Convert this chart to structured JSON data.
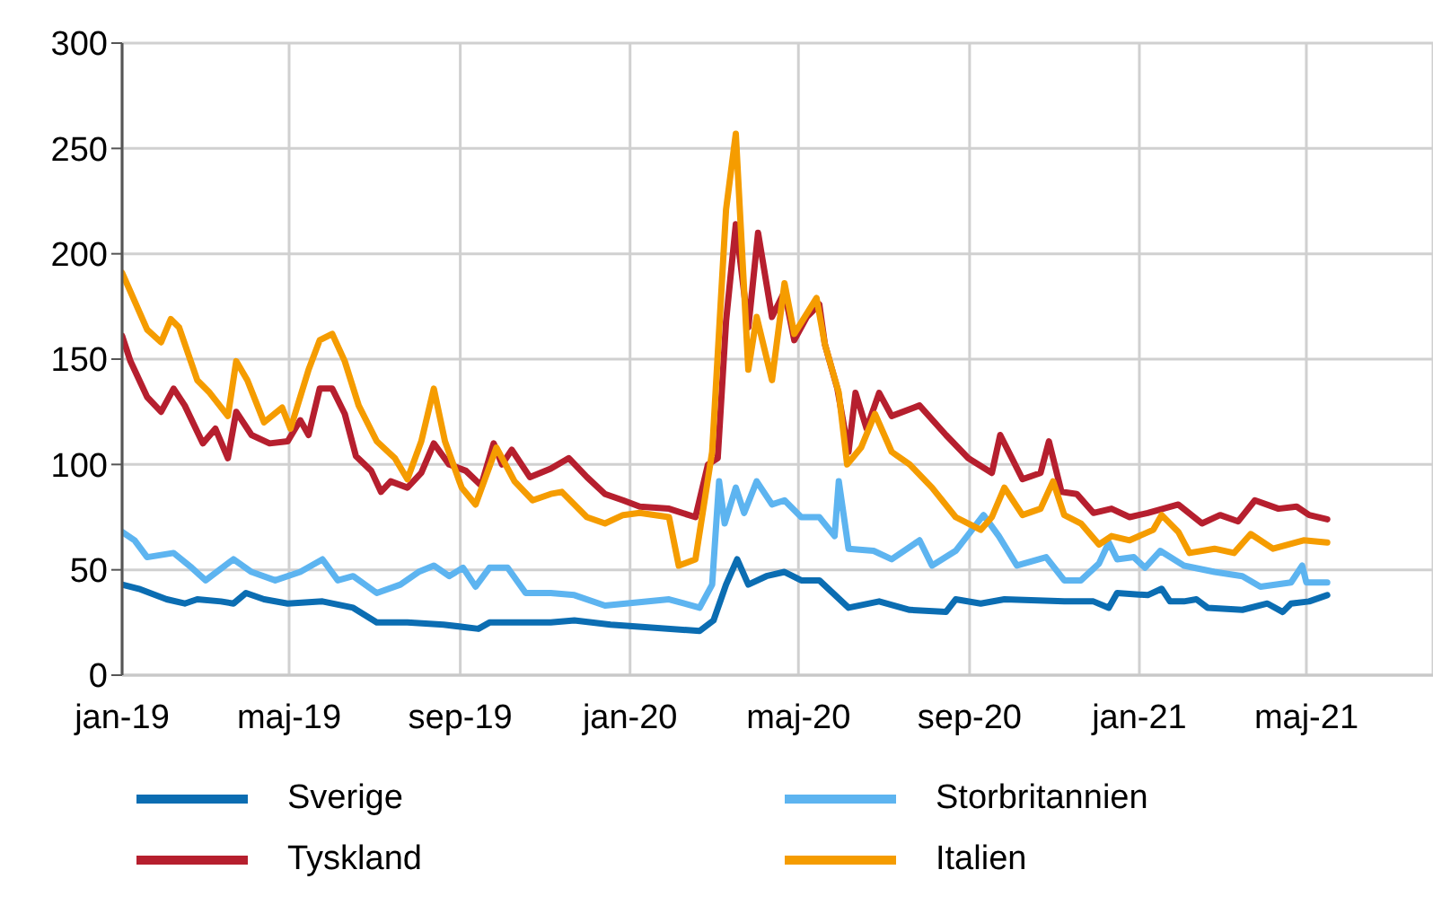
{
  "chart_data": {
    "type": "line",
    "xlim": [
      "2019-01-01",
      "2021-07-31"
    ],
    "xticks": [
      {
        "value": "2019-01-01",
        "label": "jan-19"
      },
      {
        "value": "2019-05-01",
        "label": "maj-19"
      },
      {
        "value": "2019-09-01",
        "label": "sep-19"
      },
      {
        "value": "2020-01-01",
        "label": "jan-20"
      },
      {
        "value": "2020-05-01",
        "label": "maj-20"
      },
      {
        "value": "2020-09-01",
        "label": "sep-20"
      },
      {
        "value": "2021-01-01",
        "label": "jan-21"
      },
      {
        "value": "2021-05-01",
        "label": "maj-21"
      }
    ],
    "ylim": [
      0,
      300
    ],
    "yticks": [
      0,
      50,
      100,
      150,
      200,
      250,
      300
    ],
    "grid": true,
    "legend": "bottom",
    "marker": "none",
    "line_style": "solid",
    "series": [
      {
        "name": "Sverige",
        "color": "#0b6db2",
        "x": [
          "2019-01-01",
          "2019-01-13",
          "2019-02-02",
          "2019-02-15",
          "2019-02-24",
          "2019-03-13",
          "2019-03-22",
          "2019-03-31",
          "2019-04-13",
          "2019-04-30",
          "2019-05-25",
          "2019-06-16",
          "2019-07-03",
          "2019-07-25",
          "2019-08-20",
          "2019-09-14",
          "2019-09-22",
          "2019-11-05",
          "2019-11-22",
          "2019-12-18",
          "2020-02-20",
          "2020-03-01",
          "2020-03-10",
          "2020-03-18",
          "2020-03-26",
          "2020-04-08",
          "2020-04-21",
          "2020-05-03",
          "2020-05-16",
          "2020-06-06",
          "2020-06-28",
          "2020-07-20",
          "2020-08-15",
          "2020-08-22",
          "2020-09-09",
          "2020-09-26",
          "2020-11-08",
          "2020-11-29",
          "2020-12-10",
          "2020-12-16",
          "2021-01-07",
          "2021-01-17",
          "2021-01-23",
          "2021-02-02",
          "2021-02-11",
          "2021-02-19",
          "2021-03-16",
          "2021-04-03",
          "2021-04-14",
          "2021-04-20",
          "2021-05-03",
          "2021-05-16"
        ],
        "values": [
          43,
          41,
          36,
          34,
          36,
          35,
          34,
          39,
          36,
          34,
          35,
          32,
          25,
          25,
          24,
          22,
          25,
          25,
          26,
          24,
          21,
          26,
          43,
          55,
          43,
          47,
          49,
          45,
          45,
          32,
          35,
          31,
          30,
          36,
          34,
          36,
          35,
          35,
          32,
          39,
          38,
          41,
          35,
          35,
          36,
          32,
          31,
          34,
          30,
          34,
          35,
          38
        ]
      },
      {
        "name": "Storbritannien",
        "color": "#5db4f0",
        "x": [
          "2019-01-01",
          "2019-01-10",
          "2019-01-19",
          "2019-02-07",
          "2019-02-20",
          "2019-03-02",
          "2019-03-22",
          "2019-04-04",
          "2019-04-21",
          "2019-05-09",
          "2019-05-25",
          "2019-06-05",
          "2019-06-16",
          "2019-07-03",
          "2019-07-20",
          "2019-08-02",
          "2019-08-13",
          "2019-08-24",
          "2019-09-03",
          "2019-09-12",
          "2019-09-22",
          "2019-10-05",
          "2019-10-18",
          "2019-11-05",
          "2019-11-22",
          "2019-12-14",
          "2020-01-29",
          "2020-02-20",
          "2020-02-29",
          "2020-03-05",
          "2020-03-09",
          "2020-03-17",
          "2020-03-23",
          "2020-04-01",
          "2020-04-12",
          "2020-04-21",
          "2020-05-03",
          "2020-05-16",
          "2020-05-27",
          "2020-05-30",
          "2020-06-06",
          "2020-06-24",
          "2020-07-07",
          "2020-07-27",
          "2020-08-05",
          "2020-08-22",
          "2020-09-11",
          "2020-09-22",
          "2020-10-05",
          "2020-10-26",
          "2020-11-08",
          "2020-11-20",
          "2020-12-03",
          "2020-12-10",
          "2020-12-16",
          "2020-12-28",
          "2021-01-05",
          "2021-01-16",
          "2021-02-02",
          "2021-02-24",
          "2021-03-16",
          "2021-03-29",
          "2021-04-20",
          "2021-04-28",
          "2021-05-01",
          "2021-05-16"
        ],
        "values": [
          68,
          64,
          56,
          58,
          51,
          45,
          55,
          49,
          45,
          49,
          55,
          45,
          47,
          39,
          43,
          49,
          52,
          47,
          51,
          42,
          51,
          51,
          39,
          39,
          38,
          33,
          36,
          32,
          43,
          92,
          72,
          89,
          77,
          92,
          81,
          83,
          75,
          75,
          66,
          92,
          60,
          59,
          55,
          64,
          52,
          59,
          76,
          66,
          52,
          56,
          45,
          45,
          53,
          63,
          55,
          56,
          51,
          59,
          52,
          49,
          47,
          42,
          44,
          52,
          44,
          44
        ]
      },
      {
        "name": "Tyskland",
        "color": "#b61f2e",
        "x": [
          "2019-01-01",
          "2019-01-07",
          "2019-01-19",
          "2019-01-29",
          "2019-02-07",
          "2019-02-15",
          "2019-02-28",
          "2019-03-09",
          "2019-03-18",
          "2019-03-24",
          "2019-04-04",
          "2019-04-17",
          "2019-04-30",
          "2019-05-09",
          "2019-05-15",
          "2019-05-23",
          "2019-06-01",
          "2019-06-10",
          "2019-06-18",
          "2019-06-29",
          "2019-07-06",
          "2019-07-13",
          "2019-07-25",
          "2019-08-04",
          "2019-08-13",
          "2019-08-24",
          "2019-09-05",
          "2019-09-16",
          "2019-09-25",
          "2019-10-01",
          "2019-10-08",
          "2019-10-21",
          "2019-11-05",
          "2019-11-18",
          "2019-12-01",
          "2019-12-14",
          "2019-12-27",
          "2020-01-08",
          "2020-01-29",
          "2020-02-17",
          "2020-02-26",
          "2020-03-04",
          "2020-03-10",
          "2020-03-17",
          "2020-03-26",
          "2020-04-02",
          "2020-04-12",
          "2020-04-21",
          "2020-04-28",
          "2020-05-07",
          "2020-05-16",
          "2020-05-20",
          "2020-05-29",
          "2020-06-06",
          "2020-06-11",
          "2020-06-19",
          "2020-06-28",
          "2020-07-07",
          "2020-07-27",
          "2020-08-15",
          "2020-08-31",
          "2020-09-17",
          "2020-09-23",
          "2020-10-09",
          "2020-10-22",
          "2020-10-28",
          "2020-11-06",
          "2020-11-17",
          "2020-11-29",
          "2020-12-12",
          "2020-12-25",
          "2021-01-07",
          "2021-01-29",
          "2021-02-15",
          "2021-02-28",
          "2021-03-13",
          "2021-03-25",
          "2021-04-11",
          "2021-04-24",
          "2021-05-03",
          "2021-05-16"
        ],
        "values": [
          161,
          149,
          132,
          125,
          136,
          128,
          110,
          117,
          103,
          125,
          114,
          110,
          111,
          121,
          114,
          136,
          136,
          124,
          104,
          97,
          87,
          92,
          89,
          96,
          110,
          100,
          97,
          90,
          110,
          100,
          107,
          94,
          98,
          103,
          94,
          86,
          83,
          80,
          79,
          75,
          100,
          103,
          168,
          214,
          165,
          210,
          170,
          182,
          159,
          170,
          176,
          157,
          136,
          106,
          134,
          117,
          134,
          123,
          128,
          114,
          103,
          96,
          114,
          93,
          96,
          111,
          87,
          86,
          77,
          79,
          75,
          77,
          81,
          72,
          76,
          73,
          83,
          79,
          80,
          76,
          74
        ]
      },
      {
        "name": "Italien",
        "color": "#f59c00",
        "x": [
          "2019-01-01",
          "2019-01-07",
          "2019-01-19",
          "2019-01-29",
          "2019-02-05",
          "2019-02-11",
          "2019-02-24",
          "2019-03-05",
          "2019-03-18",
          "2019-03-24",
          "2019-04-01",
          "2019-04-13",
          "2019-04-26",
          "2019-05-02",
          "2019-05-15",
          "2019-05-23",
          "2019-06-01",
          "2019-06-10",
          "2019-06-20",
          "2019-07-03",
          "2019-07-16",
          "2019-07-25",
          "2019-08-04",
          "2019-08-13",
          "2019-08-21",
          "2019-09-02",
          "2019-09-12",
          "2019-09-27",
          "2019-10-10",
          "2019-10-23",
          "2019-11-05",
          "2019-11-13",
          "2019-12-01",
          "2019-12-14",
          "2019-12-27",
          "2020-01-08",
          "2020-01-29",
          "2020-02-05",
          "2020-02-17",
          "2020-02-29",
          "2020-03-10",
          "2020-03-17",
          "2020-03-26",
          "2020-04-01",
          "2020-04-12",
          "2020-04-21",
          "2020-04-28",
          "2020-05-14",
          "2020-05-20",
          "2020-05-30",
          "2020-06-05",
          "2020-06-15",
          "2020-06-25",
          "2020-07-07",
          "2020-07-20",
          "2020-08-05",
          "2020-08-22",
          "2020-09-09",
          "2020-09-17",
          "2020-09-26",
          "2020-10-09",
          "2020-10-22",
          "2020-10-31",
          "2020-11-08",
          "2020-11-20",
          "2020-12-03",
          "2020-12-12",
          "2020-12-25",
          "2021-01-11",
          "2021-01-17",
          "2021-01-29",
          "2021-02-06",
          "2021-02-24",
          "2021-03-10",
          "2021-03-22",
          "2021-04-07",
          "2021-04-29",
          "2021-05-16"
        ],
        "values": [
          191,
          182,
          164,
          158,
          169,
          165,
          140,
          134,
          123,
          149,
          140,
          120,
          127,
          117,
          145,
          159,
          162,
          149,
          128,
          111,
          103,
          93,
          111,
          136,
          111,
          89,
          81,
          108,
          92,
          83,
          86,
          87,
          75,
          72,
          76,
          77,
          75,
          52,
          55,
          106,
          221,
          257,
          145,
          170,
          140,
          186,
          162,
          179,
          157,
          134,
          100,
          108,
          124,
          106,
          100,
          89,
          75,
          69,
          75,
          89,
          76,
          79,
          92,
          76,
          72,
          62,
          66,
          64,
          69,
          76,
          68,
          58,
          60,
          58,
          67,
          60,
          64,
          63
        ]
      }
    ]
  }
}
